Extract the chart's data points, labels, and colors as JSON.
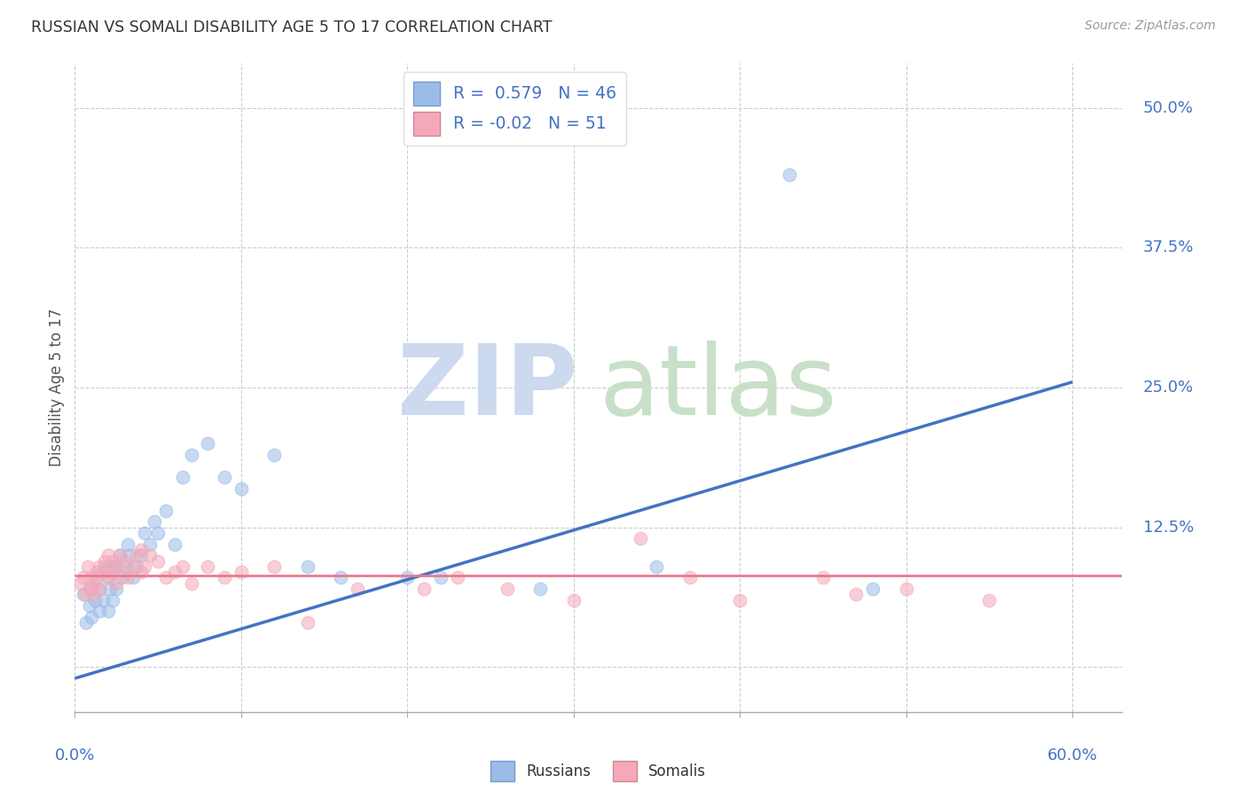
{
  "title": "RUSSIAN VS SOMALI DISABILITY AGE 5 TO 17 CORRELATION CHART",
  "source": "Source: ZipAtlas.com",
  "ylabel": "Disability Age 5 to 17",
  "ytick_values": [
    0.0,
    0.125,
    0.25,
    0.375,
    0.5
  ],
  "ytick_labels": [
    "",
    "12.5%",
    "25.0%",
    "37.5%",
    "50.0%"
  ],
  "xtick_positions": [
    0.0,
    0.1,
    0.2,
    0.3,
    0.4,
    0.5,
    0.6
  ],
  "xlim": [
    0.0,
    0.63
  ],
  "ylim": [
    -0.04,
    0.54
  ],
  "russian_R": 0.579,
  "russian_N": 46,
  "somali_R": -0.02,
  "somali_N": 51,
  "russian_color": "#9bbce8",
  "somali_color": "#f4a8b8",
  "russian_line_color": "#4472c4",
  "somali_line_color": "#e87a8e",
  "ytick_color": "#4472c4",
  "xtick_color": "#4472c4",
  "grid_color": "#cccccc",
  "russian_scatter_x": [
    0.005,
    0.007,
    0.009,
    0.01,
    0.01,
    0.012,
    0.013,
    0.015,
    0.015,
    0.017,
    0.018,
    0.02,
    0.02,
    0.021,
    0.022,
    0.023,
    0.025,
    0.025,
    0.027,
    0.028,
    0.03,
    0.032,
    0.033,
    0.035,
    0.037,
    0.04,
    0.042,
    0.045,
    0.048,
    0.05,
    0.055,
    0.06,
    0.065,
    0.07,
    0.08,
    0.09,
    0.1,
    0.12,
    0.14,
    0.16,
    0.2,
    0.22,
    0.28,
    0.35,
    0.43,
    0.48
  ],
  "russian_scatter_y": [
    0.065,
    0.04,
    0.055,
    0.045,
    0.07,
    0.06,
    0.08,
    0.05,
    0.07,
    0.06,
    0.09,
    0.05,
    0.08,
    0.07,
    0.09,
    0.06,
    0.07,
    0.09,
    0.1,
    0.08,
    0.09,
    0.11,
    0.1,
    0.08,
    0.09,
    0.1,
    0.12,
    0.11,
    0.13,
    0.12,
    0.14,
    0.11,
    0.17,
    0.19,
    0.2,
    0.17,
    0.16,
    0.19,
    0.09,
    0.08,
    0.08,
    0.08,
    0.07,
    0.09,
    0.44,
    0.07
  ],
  "somali_scatter_x": [
    0.003,
    0.005,
    0.006,
    0.008,
    0.009,
    0.01,
    0.011,
    0.012,
    0.013,
    0.015,
    0.015,
    0.017,
    0.018,
    0.02,
    0.02,
    0.022,
    0.023,
    0.025,
    0.025,
    0.027,
    0.03,
    0.03,
    0.032,
    0.035,
    0.037,
    0.04,
    0.04,
    0.042,
    0.045,
    0.05,
    0.055,
    0.06,
    0.065,
    0.07,
    0.08,
    0.09,
    0.1,
    0.12,
    0.14,
    0.17,
    0.21,
    0.23,
    0.26,
    0.3,
    0.34,
    0.37,
    0.4,
    0.45,
    0.47,
    0.5,
    0.55
  ],
  "somali_scatter_y": [
    0.075,
    0.08,
    0.065,
    0.09,
    0.07,
    0.08,
    0.065,
    0.075,
    0.085,
    0.09,
    0.07,
    0.085,
    0.095,
    0.08,
    0.1,
    0.085,
    0.095,
    0.09,
    0.075,
    0.1,
    0.085,
    0.095,
    0.08,
    0.09,
    0.1,
    0.085,
    0.105,
    0.09,
    0.1,
    0.095,
    0.08,
    0.085,
    0.09,
    0.075,
    0.09,
    0.08,
    0.085,
    0.09,
    0.04,
    0.07,
    0.07,
    0.08,
    0.07,
    0.06,
    0.115,
    0.08,
    0.06,
    0.08,
    0.065,
    0.07,
    0.06
  ],
  "russian_trend_x": [
    0.0,
    0.6
  ],
  "russian_trend_y": [
    -0.01,
    0.255
  ],
  "somali_trend_x": [
    0.0,
    0.63
  ],
  "somali_trend_y": [
    0.082,
    0.082
  ],
  "watermark_zip_color": "#ccd9ee",
  "watermark_atlas_color": "#c8e0c8",
  "legend_label_russian": "Russians",
  "legend_label_somali": "Somalis"
}
